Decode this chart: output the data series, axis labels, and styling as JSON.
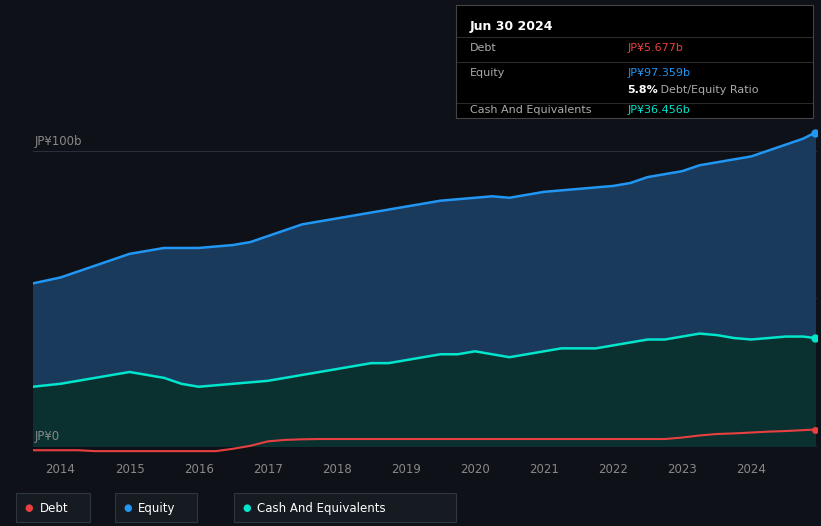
{
  "background_color": "#0e1117",
  "plot_bg_color": "#0e1117",
  "tooltip": {
    "date": "Jun 30 2024",
    "debt_label": "Debt",
    "debt_value": "JP¥5.677b",
    "debt_color": "#e84040",
    "equity_label": "Equity",
    "equity_value": "JP¥97.359b",
    "equity_color": "#2196f3",
    "ratio_bold": "5.8%",
    "ratio_text": " Debt/Equity Ratio",
    "ratio_bold_color": "#ffffff",
    "ratio_text_color": "#aaaaaa",
    "cash_label": "Cash And Equivalents",
    "cash_value": "JP¥36.456b",
    "cash_color": "#00e5cc",
    "box_bg": "#000000",
    "box_border": "#444444"
  },
  "ylabel_top": "JP¥100b",
  "ylabel_zero": "JP¥0",
  "ylim": [
    -4,
    110
  ],
  "xlim_start": 2013.6,
  "xlim_end": 2024.95,
  "xticks": [
    2014,
    2015,
    2016,
    2017,
    2018,
    2019,
    2020,
    2021,
    2022,
    2023,
    2024
  ],
  "grid_color": "#2a2f3a",
  "equity_line_color": "#2196f3",
  "equity_fill_color": "#1a3a5c",
  "cash_line_color": "#00e5cc",
  "cash_fill_color": "#0a3030",
  "debt_line_color": "#e84040",
  "debt_fill_color": "#2a0a0a",
  "legend_bg": "#161b22",
  "legend_border": "#30363d",
  "years": [
    2013.6,
    2014.0,
    2014.25,
    2014.5,
    2014.75,
    2015.0,
    2015.25,
    2015.5,
    2015.75,
    2016.0,
    2016.25,
    2016.5,
    2016.75,
    2017.0,
    2017.25,
    2017.5,
    2017.75,
    2018.0,
    2018.25,
    2018.5,
    2018.75,
    2019.0,
    2019.25,
    2019.5,
    2019.75,
    2020.0,
    2020.25,
    2020.5,
    2020.75,
    2021.0,
    2021.25,
    2021.5,
    2021.75,
    2022.0,
    2022.25,
    2022.5,
    2022.75,
    2023.0,
    2023.25,
    2023.5,
    2023.75,
    2024.0,
    2024.25,
    2024.5,
    2024.75,
    2024.92
  ],
  "equity": [
    55,
    57,
    59,
    61,
    63,
    65,
    66,
    67,
    67,
    67,
    67.5,
    68,
    69,
    71,
    73,
    75,
    76,
    77,
    78,
    79,
    80,
    81,
    82,
    83,
    83.5,
    84,
    84.5,
    84,
    85,
    86,
    86.5,
    87,
    87.5,
    88,
    89,
    91,
    92,
    93,
    95,
    96,
    97,
    98,
    100,
    102,
    104,
    106
  ],
  "cash": [
    20,
    21,
    22,
    23,
    24,
    25,
    24,
    23,
    21,
    20,
    20.5,
    21,
    21.5,
    22,
    23,
    24,
    25,
    26,
    27,
    28,
    28,
    29,
    30,
    31,
    31,
    32,
    31,
    30,
    31,
    32,
    33,
    33,
    33,
    34,
    35,
    36,
    36,
    37,
    38,
    37.5,
    36.5,
    36,
    36.5,
    37,
    37,
    36.5
  ],
  "debt": [
    -1.5,
    -1.5,
    -1.5,
    -1.8,
    -1.8,
    -1.8,
    -1.8,
    -1.8,
    -1.8,
    -1.8,
    -1.8,
    -1,
    0,
    1.5,
    2.0,
    2.2,
    2.3,
    2.3,
    2.3,
    2.3,
    2.3,
    2.3,
    2.3,
    2.3,
    2.3,
    2.3,
    2.3,
    2.3,
    2.3,
    2.3,
    2.3,
    2.3,
    2.3,
    2.3,
    2.3,
    2.3,
    2.3,
    2.8,
    3.5,
    4.0,
    4.2,
    4.5,
    4.8,
    5.0,
    5.3,
    5.5
  ]
}
